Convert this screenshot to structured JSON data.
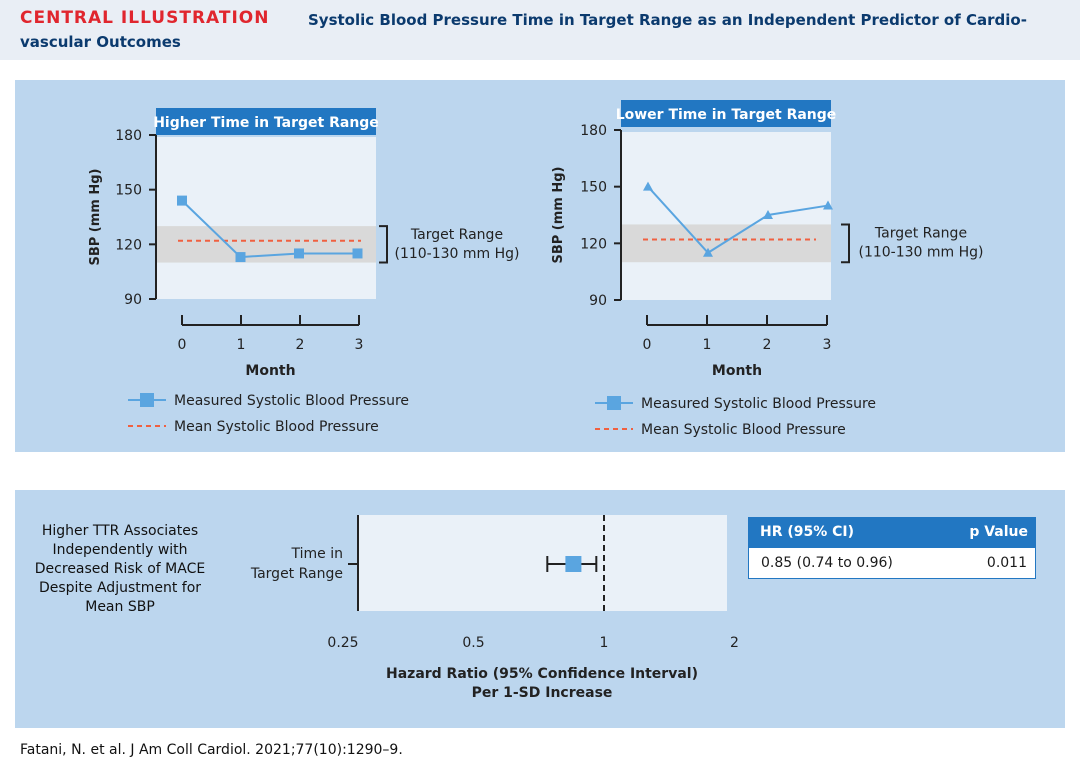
{
  "header": {
    "label": "CENTRAL ILLUSTRATION",
    "title": "Systolic Blood Pressure Time in Target Range as an Independent Predictor of Cardio-vascular Outcomes"
  },
  "colors": {
    "accent_red": "#e0262e",
    "navy": "#0b3a6e",
    "blue": "#2277c2",
    "series_blue": "#5aa5e0",
    "mean_red": "#f06040",
    "panel_bg": "#bcd6ee",
    "target_band": "#d9d9d9"
  },
  "chart_data": [
    {
      "type": "line",
      "title": "Higher Time in Target Range",
      "xlabel": "Month",
      "ylabel": "SBP (mm Hg)",
      "x": [
        0,
        1,
        2,
        3
      ],
      "xticks": [
        "0",
        "1",
        "2",
        "3"
      ],
      "yticks": [
        "90",
        "120",
        "150",
        "180"
      ],
      "ylim": [
        90,
        180
      ],
      "series": [
        {
          "name": "Measured Systolic Blood Pressure",
          "marker": "square",
          "values": [
            144,
            113,
            115,
            115
          ]
        },
        {
          "name": "Mean Systolic Blood Pressure",
          "style": "dashed",
          "values": [
            122,
            122,
            122,
            122
          ]
        }
      ],
      "target_range": [
        110,
        130
      ],
      "annotation": [
        "Target Range",
        "(110-130 mm Hg)"
      ]
    },
    {
      "type": "line",
      "title": "Lower Time in Target Range",
      "xlabel": "Month",
      "ylabel": "SBP (mm Hg)",
      "x": [
        0,
        1,
        2,
        3
      ],
      "xticks": [
        "0",
        "1",
        "2",
        "3"
      ],
      "yticks": [
        "90",
        "120",
        "150",
        "180"
      ],
      "ylim": [
        90,
        180
      ],
      "series": [
        {
          "name": "Measured Systolic Blood Pressure",
          "marker": "triangle",
          "values": [
            150,
            115,
            135,
            140
          ]
        },
        {
          "name": "Mean Systolic Blood Pressure",
          "style": "dashed",
          "values": [
            122,
            122,
            122,
            122
          ]
        }
      ],
      "target_range": [
        110,
        130
      ],
      "annotation": [
        "Target Range",
        "(110-130 mm Hg)"
      ]
    },
    {
      "type": "scatter",
      "title": "",
      "row_label": [
        "Time in",
        "Target Range"
      ],
      "xlabel": [
        "Hazard Ratio (95% Confidence Interval)",
        "Per 1-SD Increase"
      ],
      "xscale": "log",
      "xticks": [
        "0.25",
        "0.5",
        "1",
        "2"
      ],
      "xtick_values": [
        0.25,
        0.5,
        1,
        2
      ],
      "xlim": [
        0.25,
        2
      ],
      "reference_line": 1,
      "hr": 0.85,
      "ci": [
        0.74,
        0.96
      ]
    }
  ],
  "bottom": {
    "description": [
      "Higher TTR Associates",
      "Independently with",
      "Decreased Risk of MACE",
      "Despite Adjustment for",
      "Mean SBP"
    ],
    "table": {
      "headers": [
        "HR (95% CI)",
        "p Value"
      ],
      "rows": [
        [
          "0.85 (0.74 to 0.96)",
          "0.011"
        ]
      ]
    }
  },
  "citation": "Fatani, N. et al. J Am Coll Cardiol. 2021;77(10):1290–9."
}
